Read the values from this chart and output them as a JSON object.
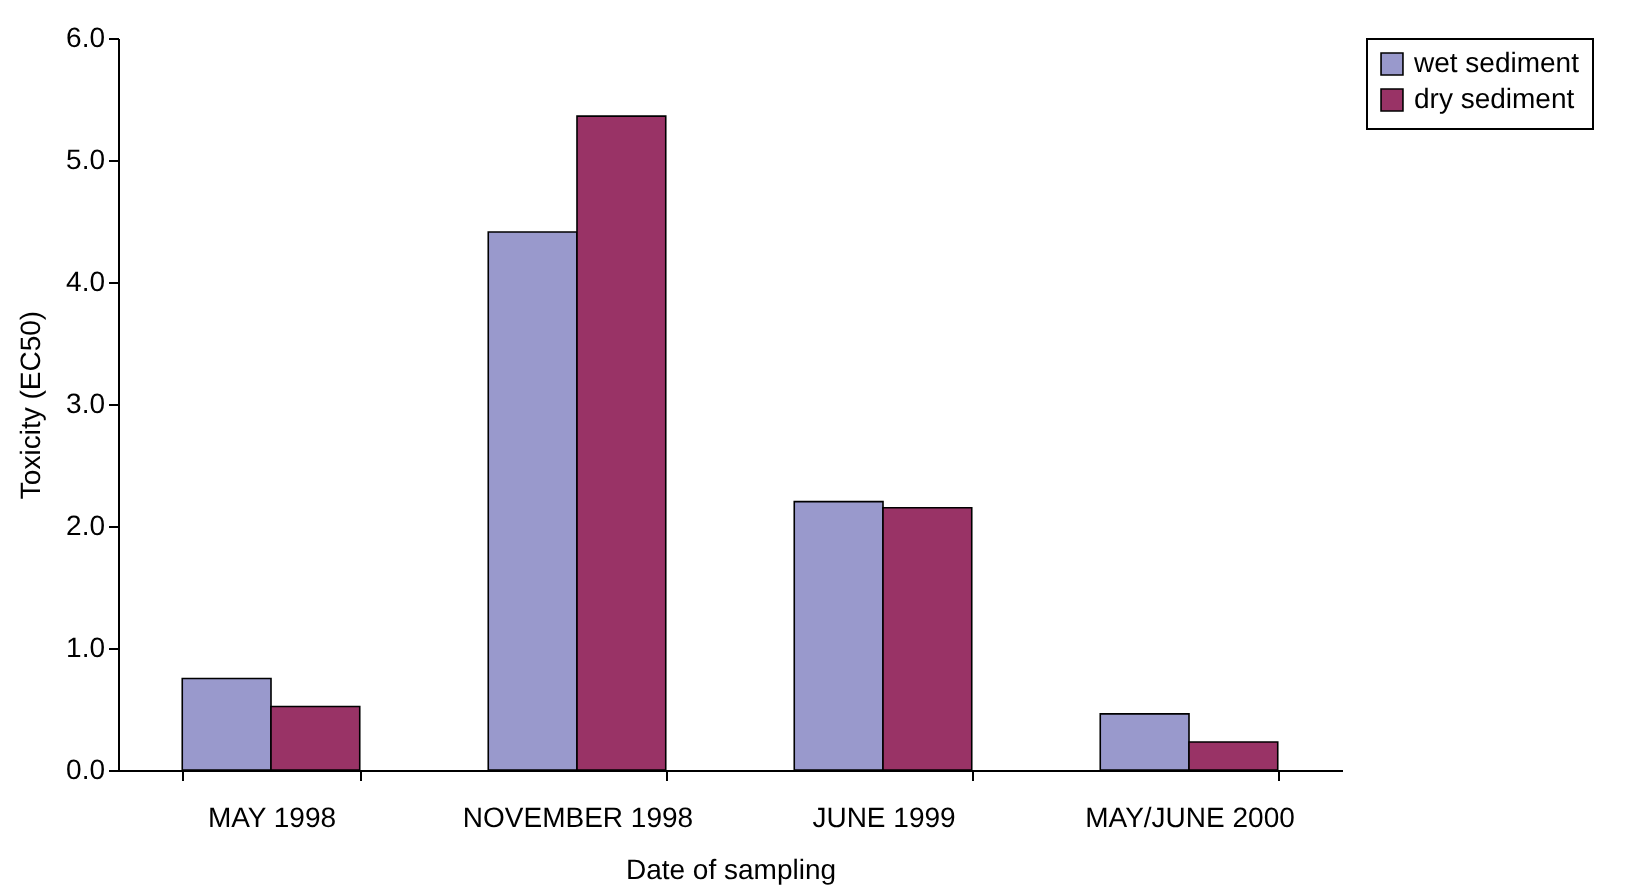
{
  "chart_data": {
    "type": "bar",
    "xlabel": "Date of sampling",
    "ylabel": "Toxicity (EC50)",
    "categories": [
      "MAY 1998",
      "NOVEMBER 1998",
      "JUNE 1999",
      "MAY/JUNE 2000"
    ],
    "series": [
      {
        "name": "wet sediment",
        "color": "#9999cc",
        "values": [
          0.75,
          4.41,
          2.2,
          0.46
        ]
      },
      {
        "name": "dry sediment",
        "color": "#993366",
        "values": [
          0.52,
          5.36,
          2.15,
          0.23
        ]
      }
    ],
    "ylim": [
      0,
      6
    ],
    "yticks": [
      {
        "value": 0,
        "label": "0.0"
      },
      {
        "value": 1,
        "label": "1.0"
      },
      {
        "value": 2,
        "label": "2.0"
      },
      {
        "value": 3,
        "label": "3.0"
      },
      {
        "value": 4,
        "label": "4.0"
      },
      {
        "value": 5,
        "label": "5.0"
      },
      {
        "value": 6,
        "label": "6.0"
      }
    ],
    "grid": false,
    "legend": "right"
  }
}
